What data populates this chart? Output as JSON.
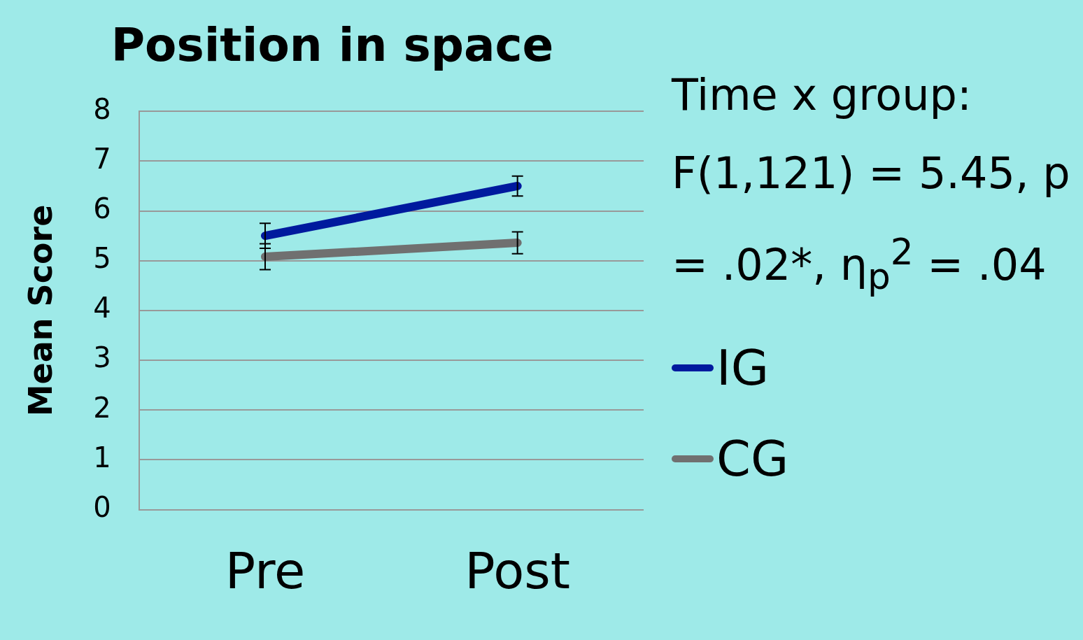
{
  "chart_data": {
    "type": "line",
    "title": "Position in space",
    "ylabel": "Mean Score",
    "categories": [
      "Pre",
      "Post"
    ],
    "series": [
      {
        "name": "IG",
        "color": "#001a9e",
        "values": [
          5.5,
          6.5
        ],
        "errors": [
          0.25,
          0.2
        ]
      },
      {
        "name": "CG",
        "color": "#707070",
        "values": [
          5.08,
          5.36
        ],
        "errors": [
          0.26,
          0.22
        ]
      }
    ],
    "ylim": [
      0,
      8
    ],
    "yticks": [
      0,
      1,
      2,
      3,
      4,
      5,
      6,
      7,
      8
    ],
    "grid": "y",
    "legend": "right",
    "marker": "none",
    "line_style": "solid",
    "annotations": [
      "Time x group: F(1,121) = 5.45, p = .02*, η$_{p}$$^{2}$ = .04"
    ]
  }
}
